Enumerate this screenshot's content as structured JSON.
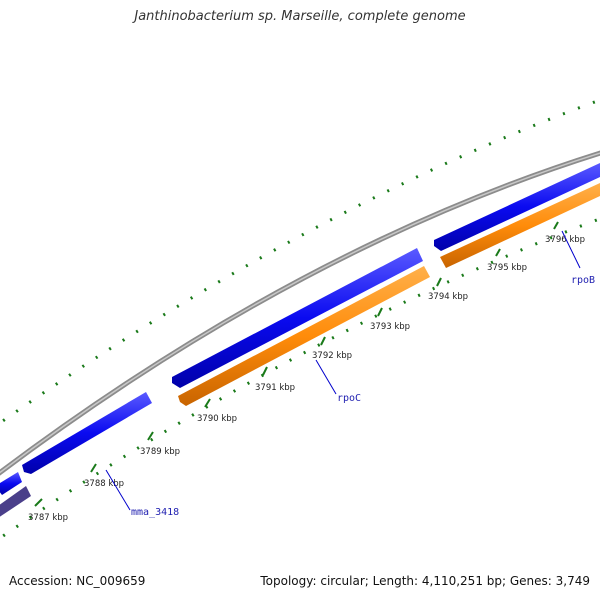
{
  "title": "Janthinobacterium sp. Marseille, complete genome",
  "footer": {
    "accession": "Accession: NC_009659",
    "summary": "Topology: circular; Length: 4,110,251 bp; Genes: 3,749"
  },
  "colors": {
    "backbone": "#8c8c8c",
    "forward_gene": "#0a0af0",
    "reverse_gene": "#ff8c0a",
    "other_gene": "#4a3f8a",
    "tick": "#1a7a1a",
    "label_line": "#0000cc"
  },
  "scale_ticks": [
    "3787 kbp",
    "3788 kbp",
    "3789 kbp",
    "3790 kbp",
    "3791 kbp",
    "3792 kbp",
    "3793 kbp",
    "3794 kbp",
    "3795 kbp",
    "3796 kbp"
  ],
  "gene_labels": [
    "mma_3418",
    "rpoC",
    "rpoB"
  ]
}
